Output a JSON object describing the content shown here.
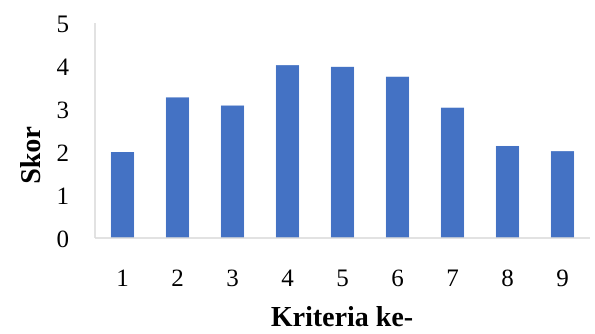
{
  "chart_data": {
    "type": "bar",
    "categories": [
      "1",
      "2",
      "3",
      "4",
      "5",
      "6",
      "7",
      "8",
      "9"
    ],
    "values": [
      2.0,
      3.27,
      3.08,
      4.02,
      3.98,
      3.75,
      3.03,
      2.14,
      2.02
    ],
    "title": "",
    "xlabel": "Kriteria ke-",
    "ylabel": "Skor",
    "ylim": [
      0,
      5
    ],
    "yticks": [
      "0",
      "1",
      "2",
      "3",
      "4",
      "5"
    ],
    "grid": false,
    "bar_color": "#4472C4",
    "axis_color": "#D9D9D9"
  }
}
